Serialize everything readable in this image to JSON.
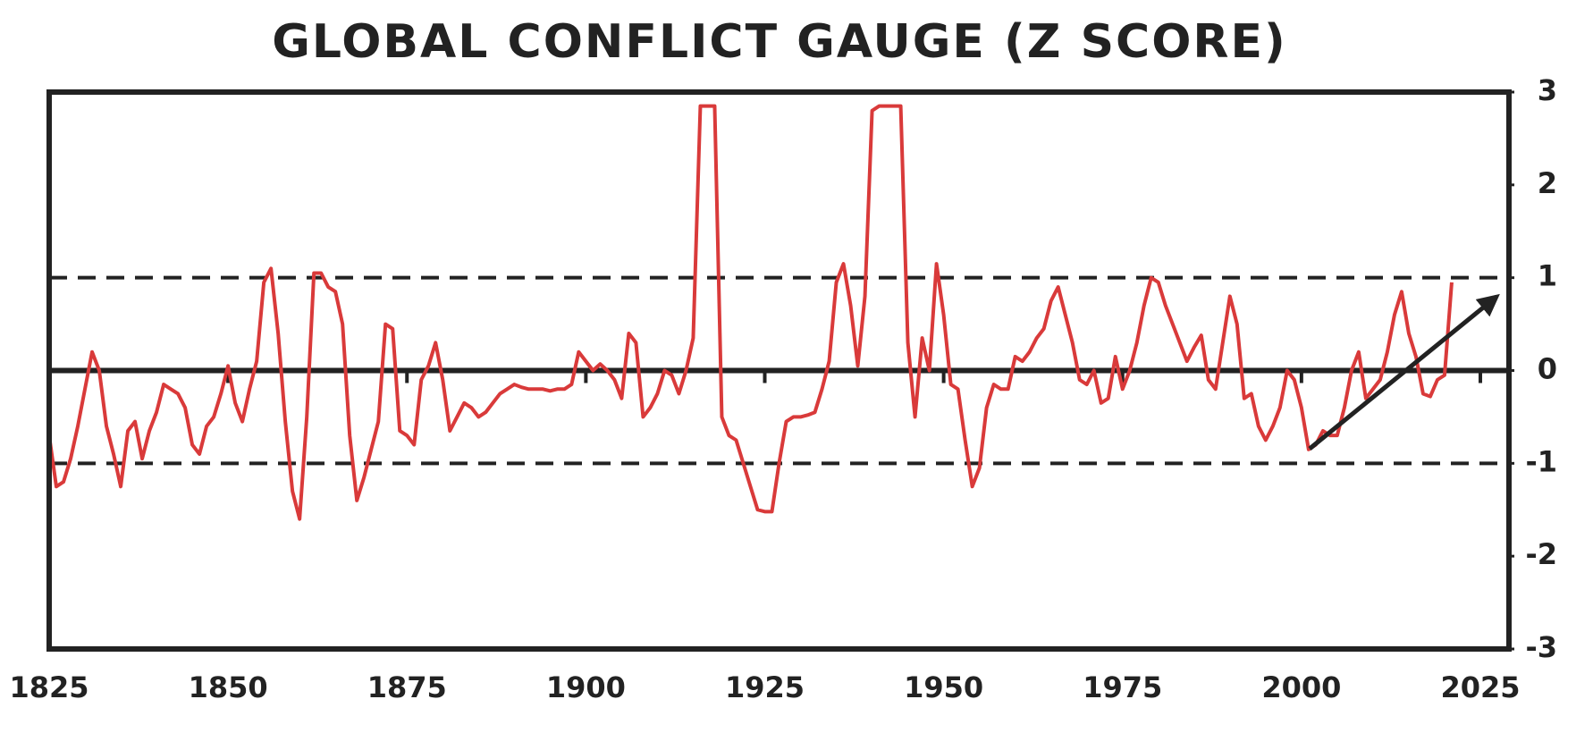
{
  "chart_data": {
    "type": "line",
    "title": "GLOBAL CONFLICT GAUGE (Z SCORE)",
    "x": [
      1825,
      1826,
      1827,
      1828,
      1829,
      1830,
      1831,
      1832,
      1833,
      1834,
      1835,
      1836,
      1837,
      1838,
      1839,
      1840,
      1841,
      1842,
      1843,
      1844,
      1845,
      1846,
      1847,
      1848,
      1849,
      1850,
      1851,
      1852,
      1853,
      1854,
      1855,
      1856,
      1857,
      1858,
      1859,
      1860,
      1861,
      1862,
      1863,
      1864,
      1865,
      1866,
      1867,
      1868,
      1869,
      1870,
      1871,
      1872,
      1873,
      1874,
      1875,
      1876,
      1877,
      1878,
      1879,
      1880,
      1881,
      1882,
      1883,
      1884,
      1885,
      1886,
      1887,
      1888,
      1889,
      1890,
      1891,
      1892,
      1893,
      1894,
      1895,
      1896,
      1897,
      1898,
      1899,
      1900,
      1901,
      1902,
      1903,
      1904,
      1905,
      1906,
      1907,
      1908,
      1909,
      1910,
      1911,
      1912,
      1913,
      1914,
      1915,
      1916,
      1917,
      1918,
      1919,
      1920,
      1921,
      1922,
      1923,
      1924,
      1925,
      1926,
      1927,
      1928,
      1929,
      1930,
      1931,
      1932,
      1933,
      1934,
      1935,
      1936,
      1937,
      1938,
      1939,
      1940,
      1941,
      1942,
      1943,
      1944,
      1945,
      1946,
      1947,
      1948,
      1949,
      1950,
      1951,
      1952,
      1953,
      1954,
      1955,
      1956,
      1957,
      1958,
      1959,
      1960,
      1961,
      1962,
      1963,
      1964,
      1965,
      1966,
      1967,
      1968,
      1969,
      1970,
      1971,
      1972,
      1973,
      1974,
      1975,
      1976,
      1977,
      1978,
      1979,
      1980,
      1981,
      1982,
      1983,
      1984,
      1985,
      1986,
      1987,
      1988,
      1989,
      1990,
      1991,
      1992,
      1993,
      1994,
      1995,
      1996,
      1997,
      1998,
      1999,
      2000,
      2001,
      2002,
      2003,
      2004,
      2005,
      2006,
      2007,
      2008,
      2009,
      2010,
      2011,
      2012,
      2013,
      2014,
      2015,
      2016,
      2017,
      2018,
      2019,
      2020,
      2021
    ],
    "values": [
      -0.7,
      -1.25,
      -1.2,
      -0.95,
      -0.6,
      -0.2,
      0.2,
      0.0,
      -0.6,
      -0.9,
      -1.25,
      -0.65,
      -0.55,
      -0.95,
      -0.65,
      -0.45,
      -0.15,
      -0.2,
      -0.25,
      -0.4,
      -0.8,
      -0.9,
      -0.6,
      -0.5,
      -0.25,
      0.05,
      -0.35,
      -0.55,
      -0.2,
      0.1,
      0.95,
      1.1,
      0.4,
      -0.55,
      -1.3,
      -1.6,
      -0.5,
      1.05,
      1.05,
      0.9,
      0.85,
      0.5,
      -0.7,
      -1.4,
      -1.15,
      -0.85,
      -0.55,
      0.5,
      0.45,
      -0.65,
      -0.7,
      -0.8,
      -0.1,
      0.05,
      0.3,
      -0.1,
      -0.65,
      -0.5,
      -0.35,
      -0.4,
      -0.5,
      -0.45,
      -0.35,
      -0.25,
      -0.2,
      -0.15,
      -0.18,
      -0.2,
      -0.2,
      -0.2,
      -0.22,
      -0.2,
      -0.2,
      -0.15,
      0.2,
      0.1,
      0.0,
      0.07,
      0.0,
      -0.1,
      -0.3,
      0.4,
      0.3,
      -0.5,
      -0.4,
      -0.25,
      0.0,
      -0.05,
      -0.25,
      0.0,
      0.35,
      2.85,
      2.85,
      2.85,
      -0.5,
      -0.7,
      -0.75,
      -1.0,
      -1.25,
      -1.5,
      -1.52,
      -1.52,
      -1.0,
      -0.55,
      -0.5,
      -0.5,
      -0.48,
      -0.45,
      -0.2,
      0.1,
      0.95,
      1.15,
      0.7,
      0.05,
      0.8,
      2.8,
      2.85,
      2.85,
      2.85,
      2.85,
      0.3,
      -0.5,
      0.35,
      0.0,
      1.15,
      0.6,
      -0.15,
      -0.2,
      -0.75,
      -1.25,
      -1.05,
      -0.4,
      -0.15,
      -0.2,
      -0.2,
      0.15,
      0.1,
      0.2,
      0.35,
      0.45,
      0.75,
      0.9,
      0.6,
      0.3,
      -0.1,
      -0.15,
      0.0,
      -0.35,
      -0.3,
      0.15,
      -0.2,
      0.0,
      0.3,
      0.7,
      1.0,
      0.95,
      0.7,
      0.5,
      0.3,
      0.1,
      0.25,
      0.38,
      -0.1,
      -0.2,
      0.3,
      0.8,
      0.5,
      -0.3,
      -0.25,
      -0.6,
      -0.75,
      -0.6,
      -0.4,
      0.0,
      -0.1,
      -0.4,
      -0.85,
      -0.8,
      -0.65,
      -0.7,
      -0.7,
      -0.4,
      0.0,
      0.2,
      -0.3,
      -0.2,
      -0.1,
      0.2,
      0.6,
      0.85,
      0.4,
      0.15,
      -0.25,
      -0.28,
      -0.1,
      -0.05,
      0.95
    ],
    "color": "#d93a3a",
    "xlim": [
      1825,
      2029
    ],
    "xticks": [
      1825,
      1850,
      1875,
      1900,
      1925,
      1950,
      1975,
      2000,
      2025
    ],
    "ylim": [
      -3,
      3
    ],
    "yticks": [
      -3,
      -2,
      -1,
      0,
      1,
      2,
      3
    ],
    "reference_lines": [
      {
        "y": 0,
        "style": "solid"
      },
      {
        "y": 1,
        "style": "dashed"
      },
      {
        "y": -1,
        "style": "dashed"
      }
    ]
  }
}
